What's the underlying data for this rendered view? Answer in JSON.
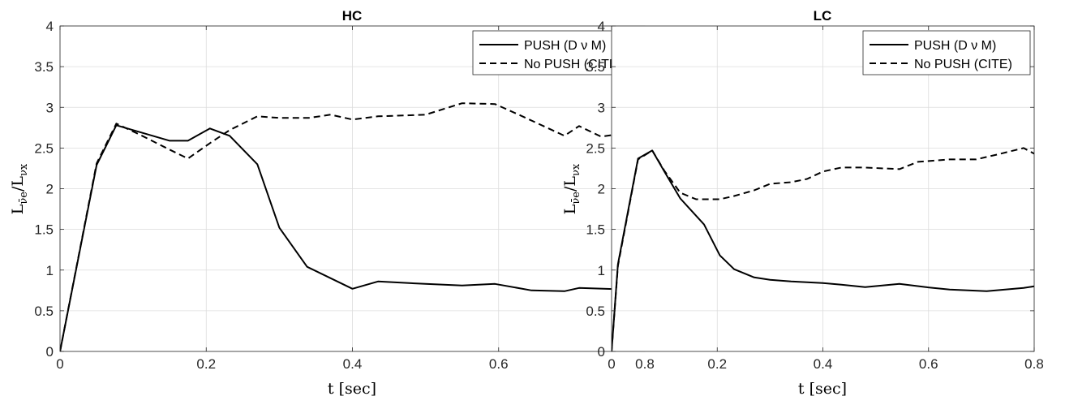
{
  "chart_data": [
    {
      "type": "line",
      "title": "HC",
      "xlabel": "t [sec]",
      "ylabel": "L_ν̄e / L_νx",
      "xlim": [
        0,
        0.8
      ],
      "ylim": [
        0,
        4
      ],
      "xticks": [
        "0",
        "0.2",
        "0.4",
        "0.6",
        "0.8"
      ],
      "yticks": [
        "0",
        "0.5",
        "1",
        "1.5",
        "2",
        "2.5",
        "3",
        "3.5",
        "4"
      ],
      "grid": true,
      "legend_position": "top-right",
      "series": [
        {
          "name": "PUSH (D ν M)",
          "style": "solid",
          "color": "#000000",
          "x": [
            0,
            0.05,
            0.077,
            0.15,
            0.175,
            0.205,
            0.232,
            0.27,
            0.3,
            0.338,
            0.4,
            0.435,
            0.5,
            0.55,
            0.595,
            0.645,
            0.69,
            0.71,
            0.78,
            0.8
          ],
          "y": [
            0,
            2.29,
            2.78,
            2.59,
            2.59,
            2.74,
            2.65,
            2.3,
            1.52,
            1.04,
            0.77,
            0.86,
            0.83,
            0.81,
            0.83,
            0.75,
            0.74,
            0.78,
            0.76,
            0.68
          ]
        },
        {
          "name": "No PUSH (CITE)",
          "style": "dashed",
          "color": "#000000",
          "x": [
            0,
            0.05,
            0.077,
            0.11,
            0.15,
            0.175,
            0.205,
            0.232,
            0.27,
            0.3,
            0.34,
            0.37,
            0.4,
            0.435,
            0.47,
            0.5,
            0.55,
            0.595,
            0.63,
            0.69,
            0.71,
            0.74,
            0.78,
            0.8
          ],
          "y": [
            0,
            2.31,
            2.8,
            2.66,
            2.48,
            2.37,
            2.56,
            2.72,
            2.89,
            2.87,
            2.87,
            2.91,
            2.85,
            2.89,
            2.9,
            2.91,
            3.05,
            3.04,
            2.9,
            2.65,
            2.77,
            2.64,
            2.69,
            2.73
          ]
        }
      ]
    },
    {
      "type": "line",
      "title": "LC",
      "xlabel": "t [sec]",
      "ylabel": "L_ν̄e / L_νx",
      "xlim": [
        0,
        0.8
      ],
      "ylim": [
        0,
        4
      ],
      "xticks": [
        "0",
        "0.2",
        "0.4",
        "0.6",
        "0.8"
      ],
      "yticks": [
        "0",
        "0.5",
        "1",
        "1.5",
        "2",
        "2.5",
        "3",
        "3.5",
        "4"
      ],
      "grid": true,
      "legend_position": "top-right",
      "series": [
        {
          "name": "PUSH (D ν M)",
          "style": "solid",
          "color": "#000000",
          "x": [
            0,
            0.012,
            0.05,
            0.077,
            0.1,
            0.13,
            0.175,
            0.205,
            0.232,
            0.27,
            0.3,
            0.34,
            0.4,
            0.435,
            0.48,
            0.545,
            0.595,
            0.64,
            0.71,
            0.78,
            0.8
          ],
          "y": [
            0,
            1.07,
            2.37,
            2.47,
            2.21,
            1.88,
            1.56,
            1.18,
            1.01,
            0.91,
            0.88,
            0.86,
            0.84,
            0.82,
            0.79,
            0.83,
            0.79,
            0.76,
            0.74,
            0.78,
            0.8
          ]
        },
        {
          "name": "No PUSH (CITE)",
          "style": "dashed",
          "color": "#000000",
          "x": [
            0,
            0.012,
            0.05,
            0.077,
            0.1,
            0.13,
            0.16,
            0.205,
            0.232,
            0.27,
            0.3,
            0.34,
            0.37,
            0.4,
            0.435,
            0.48,
            0.545,
            0.58,
            0.64,
            0.69,
            0.73,
            0.78,
            0.8
          ],
          "y": [
            0,
            1.05,
            2.36,
            2.47,
            2.22,
            1.95,
            1.87,
            1.87,
            1.91,
            1.98,
            2.06,
            2.08,
            2.12,
            2.21,
            2.26,
            2.26,
            2.24,
            2.33,
            2.36,
            2.36,
            2.42,
            2.5,
            2.43
          ]
        }
      ]
    }
  ]
}
